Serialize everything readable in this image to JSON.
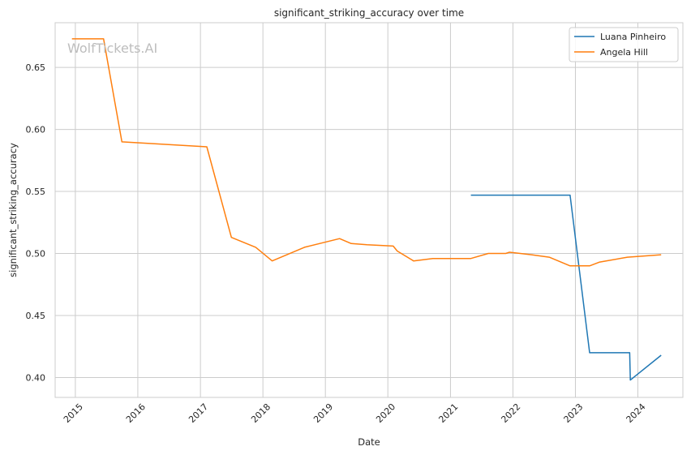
{
  "watermark": "WolfTickets.AI",
  "chart_data": {
    "type": "line",
    "title": "significant_striking_accuracy over time",
    "xlabel": "Date",
    "ylabel": "significant_striking_accuracy",
    "xlim": [
      "2014-09-05",
      "2024-09-20"
    ],
    "ylim": [
      0.384,
      0.686
    ],
    "x_ticks": [
      "2015",
      "2016",
      "2017",
      "2018",
      "2019",
      "2020",
      "2021",
      "2022",
      "2023",
      "2024"
    ],
    "y_ticks": [
      "0.40",
      "0.45",
      "0.50",
      "0.55",
      "0.60",
      "0.65"
    ],
    "grid": true,
    "legend_position": "top-right",
    "series": [
      {
        "name": "Luana Pinheiro",
        "color": "#1f77b4",
        "points": [
          [
            "2021-04-30",
            0.547
          ],
          [
            "2022-12-01",
            0.547
          ],
          [
            "2023-03-25",
            0.42
          ],
          [
            "2023-11-14",
            0.42
          ],
          [
            "2023-11-18",
            0.398
          ],
          [
            "2024-05-16",
            0.418
          ]
        ]
      },
      {
        "name": "Angela Hill",
        "color": "#ff7f0e",
        "points": [
          [
            "2014-12-12",
            0.673
          ],
          [
            "2015-06-15",
            0.673
          ],
          [
            "2015-09-30",
            0.59
          ],
          [
            "2017-02-07",
            0.586
          ],
          [
            "2017-07-01",
            0.513
          ],
          [
            "2017-11-20",
            0.505
          ],
          [
            "2018-02-24",
            0.494
          ],
          [
            "2018-09-01",
            0.505
          ],
          [
            "2019-03-25",
            0.512
          ],
          [
            "2019-06-01",
            0.508
          ],
          [
            "2019-09-01",
            0.507
          ],
          [
            "2020-02-01",
            0.506
          ],
          [
            "2020-02-25",
            0.502
          ],
          [
            "2020-05-30",
            0.494
          ],
          [
            "2020-09-20",
            0.496
          ],
          [
            "2021-04-30",
            0.496
          ],
          [
            "2021-08-10",
            0.5
          ],
          [
            "2021-11-20",
            0.5
          ],
          [
            "2021-12-12",
            0.501
          ],
          [
            "2022-04-20",
            0.499
          ],
          [
            "2022-08-01",
            0.497
          ],
          [
            "2022-12-01",
            0.49
          ],
          [
            "2023-03-25",
            0.49
          ],
          [
            "2023-05-20",
            0.493
          ],
          [
            "2023-11-01",
            0.497
          ],
          [
            "2024-05-16",
            0.499
          ]
        ]
      }
    ]
  }
}
